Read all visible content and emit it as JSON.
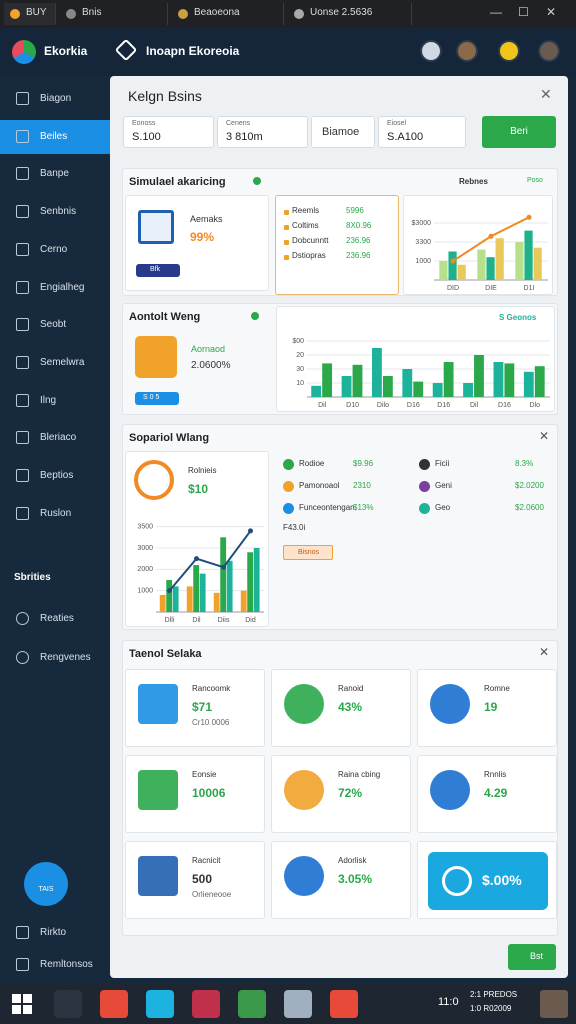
{
  "tabs": [
    "BUY",
    "Bnis",
    "Beaoeona",
    "Uonse 2.5636"
  ],
  "app": {
    "name": "Ekorkia",
    "title": "Inoapn Ekoreoia"
  },
  "sidebar": {
    "items": [
      "Biagon",
      "Beiles",
      "Banpe",
      "Senbnis",
      "Cerno",
      "Engialheg",
      "Seobt",
      "Semelwra",
      "Ilng",
      "Bleriaco",
      "Beptios",
      "Ruslon"
    ],
    "section": "Sbrities",
    "section_items": [
      "Reaties",
      "Rengvenes"
    ],
    "fab": "TAIS",
    "footer": [
      "Rirkto",
      "Remltonsos"
    ]
  },
  "panel": {
    "title": "Kelgn Bsins",
    "inputs": [
      {
        "label": "Eonoss",
        "value": "S.100"
      },
      {
        "label": "Cenens",
        "value": "3 810m"
      },
      {
        "value": "Biamoe"
      },
      {
        "label": "Eiosel",
        "value": "S.A100"
      }
    ],
    "button": "Beri",
    "section1": {
      "title": "Simulael akaricing",
      "card": {
        "label": "Aemaks",
        "value": "99%",
        "chip": "Bfk"
      },
      "list": [
        {
          "name": "Reemls",
          "value": "5996"
        },
        {
          "name": "Coltims",
          "value": "8X0.96"
        },
        {
          "name": "Dobcunntt",
          "value": "236.96"
        },
        {
          "name": "Dstiopras",
          "value": "236.96"
        }
      ],
      "chart": {
        "title": "Rebnes",
        "legend": "Poso",
        "ylim": [
          0,
          4
        ],
        "yticks": [
          {
            "value": 1,
            "label": "1000"
          },
          {
            "value": 2,
            "label": "3300"
          },
          {
            "value": 3,
            "label": "$3000"
          }
        ],
        "categories": [
          "DID",
          "DIE",
          "D1I"
        ],
        "series": [
          {
            "color": "#b7e08a",
            "values": [
              1.0,
              1.6,
              2.0
            ]
          },
          {
            "color": "#1fb28a",
            "values": [
              1.5,
              1.2,
              2.6
            ]
          },
          {
            "color": "#e8c95a",
            "values": [
              0.8,
              2.2,
              1.7
            ]
          }
        ],
        "line": {
          "color": "#f08a24",
          "values": [
            1.0,
            2.3,
            3.3
          ]
        }
      }
    },
    "section2": {
      "title": "Aontolt Weng",
      "card": {
        "label": "Aornaod",
        "value": "2.0600%",
        "chip": "S 0 5"
      },
      "chart": {
        "legend": "S Geonos",
        "ylim": [
          0,
          5
        ],
        "yticks": [
          {
            "value": 1,
            "label": "10"
          },
          {
            "value": 2,
            "label": "30"
          },
          {
            "value": 3,
            "label": "20"
          },
          {
            "value": 4,
            "label": "$00"
          }
        ],
        "categories": [
          "Dil",
          "D10",
          "Dilo",
          "D16",
          "D16",
          "Dil",
          "D16",
          "Dlo"
        ],
        "series": [
          {
            "color": "#1db39a",
            "values": [
              0.8,
              1.5,
              3.5,
              2.0,
              1.0,
              1.0,
              2.5,
              1.8
            ]
          },
          {
            "color": "#2aa84a",
            "values": [
              2.4,
              2.3,
              1.5,
              1.1,
              2.5,
              3.0,
              2.4,
              2.2
            ]
          }
        ]
      }
    },
    "section3": {
      "title": "Sopariol Wlang",
      "card": {
        "label": "Rolnieis",
        "value": "$10"
      },
      "chart": {
        "ylim": [
          0,
          4.5
        ],
        "yticks": [
          {
            "value": 1,
            "label": "1000"
          },
          {
            "value": 2,
            "label": "2000"
          },
          {
            "value": 3,
            "label": "3000"
          },
          {
            "value": 4,
            "label": "3500"
          }
        ],
        "categories": [
          "Dlli",
          "Dil",
          "Diis",
          "Did"
        ],
        "series": [
          {
            "color": "#f0a22a",
            "values": [
              0.8,
              1.2,
              0.9,
              1.0
            ]
          },
          {
            "color": "#2aa84a",
            "values": [
              1.5,
              2.2,
              3.5,
              2.8
            ]
          },
          {
            "color": "#1db39a",
            "values": [
              1.2,
              1.8,
              2.4,
              3.0
            ]
          }
        ],
        "line": {
          "color": "#1f4e79",
          "values": [
            1.0,
            2.5,
            2.1,
            3.8
          ]
        }
      },
      "list": [
        {
          "name": "Rodioe",
          "value": "$9.96"
        },
        {
          "name": "Ficii",
          "value": "8.3%"
        },
        {
          "name": "Pamonoaol",
          "value": "2310"
        },
        {
          "name": "Geni",
          "value": "$2.0200"
        },
        {
          "name": "Funceontengan",
          "value": "$13%"
        },
        {
          "name": "Geo",
          "value": "$2.0600"
        }
      ],
      "note": "F43.0i",
      "chip": "Bisnos"
    },
    "section4": {
      "title": "Taenol Selaka",
      "cards": [
        {
          "label": "Rancoomk",
          "value": "$71",
          "sub": "Cr10 0006"
        },
        {
          "label": "Ranoid",
          "value": "43%"
        },
        {
          "label": "Romne",
          "value": "19"
        },
        {
          "label": "Eonsie",
          "value": "10006"
        },
        {
          "label": "Raina cbing",
          "value": "72%"
        },
        {
          "label": "Rnnlis",
          "value": "4.29"
        },
        {
          "label": "Racnicit",
          "value": "500",
          "sub": "Orlieneooe"
        },
        {
          "label": "Adorlisk",
          "value": "3.05%"
        },
        {
          "value": "$.00%"
        }
      ]
    },
    "footer_button": "Bst"
  },
  "taskbar": {
    "time": "11:0",
    "date": [
      "2:1 PREDOS",
      "1:0 R02009"
    ]
  }
}
